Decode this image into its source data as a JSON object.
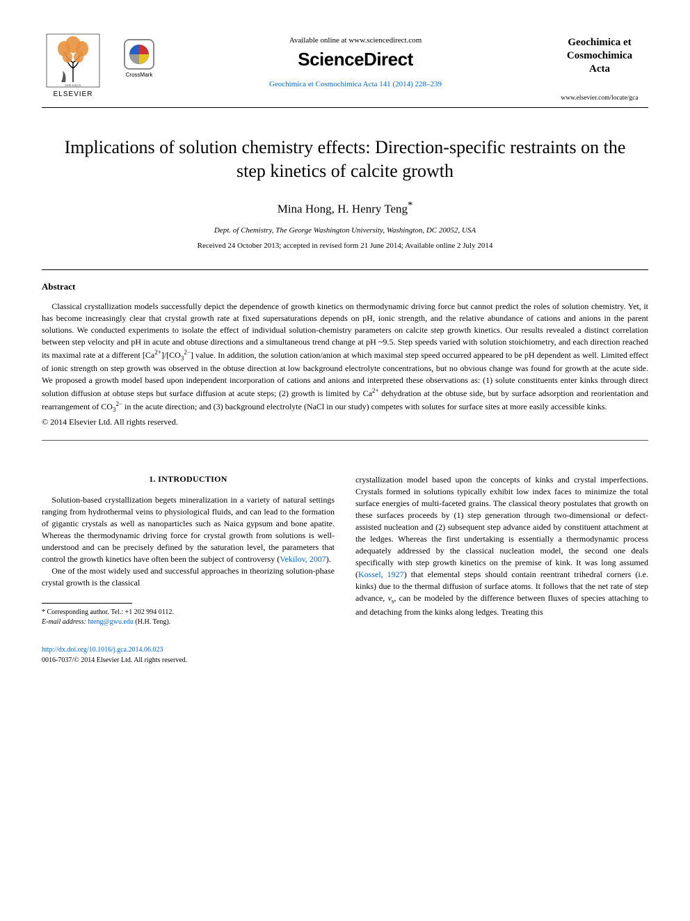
{
  "header": {
    "elsevier_label": "ELSEVIER",
    "crossmark_label": "CrossMark",
    "available_online": "Available online at www.sciencedirect.com",
    "sciencedirect": "ScienceDirect",
    "citation": "Geochimica et Cosmochimica Acta 141 (2014) 228–239",
    "journal_name_line1": "Geochimica et",
    "journal_name_line2": "Cosmochimica",
    "journal_name_line3": "Acta",
    "journal_url": "www.elsevier.com/locate/gca",
    "colors": {
      "link": "#0066cc",
      "text": "#000000",
      "background": "#ffffff",
      "crossmark_border": "#888888",
      "crossmark_red": "#cc3333",
      "crossmark_yellow": "#e8c020",
      "crossmark_blue": "#2060cc",
      "crossmark_gray": "#999999",
      "elsevier_orange": "#e8913d"
    }
  },
  "article": {
    "title": "Implications of solution chemistry effects: Direction-specific restraints on the step kinetics of calcite growth",
    "authors": "Mina Hong, H. Henry Teng",
    "corresponding_marker": "*",
    "affiliation": "Dept. of Chemistry, The George Washington University, Washington, DC 20052, USA",
    "dates": "Received 24 October 2013; accepted in revised form 21 June 2014; Available online 2 July 2014"
  },
  "abstract": {
    "heading": "Abstract",
    "body_pre": "Classical crystallization models successfully depict the dependence of growth kinetics on thermodynamic driving force but cannot predict the roles of solution chemistry. Yet, it has become increasingly clear that crystal growth rate at fixed supersaturations depends on pH, ionic strength, and the relative abundance of cations and anions in the parent solutions. We conducted experiments to isolate the effect of individual solution-chemistry parameters on calcite step growth kinetics. Our results revealed a distinct correlation between step velocity and pH in acute and obtuse directions and a simultaneous trend change at pH ~9.5. Step speeds varied with solution stoichiometry, and each direction reached its maximal rate at a different ",
    "ratio_html": "[Ca<sup>2+</sup>]/[CO<sub>3</sub><sup>2−</sup>]",
    "body_mid": " value. In addition, the solution cation/anion at which maximal step speed occurred appeared to be pH dependent as well. Limited effect of ionic strength on step growth was observed in the obtuse direction at low background electrolyte concentrations, but no obvious change was found for growth at the acute side. We proposed a growth model based upon independent incorporation of cations and anions and interpreted these observations as: (1) solute constituents enter kinks through direct solution diffusion at obtuse steps but surface diffusion at acute steps; (2) growth is limited by Ca",
    "ca_sup": "2+",
    "body_mid2": " dehydration at the obtuse side, but by surface adsorption and reorientation and rearrangement of ",
    "co3_html": "CO<sub>3</sub><sup>2−</sup>",
    "body_end": " in the acute direction; and (3) background electrolyte (NaCl in our study) competes with solutes for surface sites at more easily accessible kinks.",
    "copyright": "© 2014 Elsevier Ltd. All rights reserved."
  },
  "introduction": {
    "heading": "1. INTRODUCTION",
    "para1_pre": "Solution-based crystallization begets mineralization in a variety of natural settings ranging from hydrothermal veins to physiological fluids, and can lead to the formation of gigantic crystals as well as nanoparticles such as Naica gypsum and bone apatite. Whereas the thermodynamic driving force for crystal growth from solutions is well-understood and can be precisely defined by the saturation level, the parameters that control the growth kinetics have often been the subject of controversy (",
    "para1_cite": "Vekilov, 2007",
    "para1_post": ").",
    "para2": "One of the most widely used and successful approaches in theorizing solution-phase crystal growth is the classical",
    "para3_pre": "crystallization model based upon the concepts of kinks and crystal imperfections. Crystals formed in solutions typically exhibit low index faces to minimize the total surface energies of multi-faceted grains. The classical theory postulates that growth on these surfaces proceeds by (1) step generation through two-dimensional or defect-assisted nucleation and (2) subsequent step advance aided by constituent attachment at the ledges. Whereas the first undertaking is essentially a thermodynamic process adequately addressed by the classical nucleation model, the second one deals specifically with step growth kinetics on the premise of kink. It was long assumed (",
    "para3_cite": "Kossel, 1927",
    "para3_post": ") that elemental steps should contain reentrant trihedral corners (i.e. kinks) due to the thermal diffusion of surface atoms. It follows that the net rate of step advance, ",
    "vs_var": "v",
    "vs_sub": "s",
    "para3_end": ", can be modeled by the difference between fluxes of species attaching to and detaching from the kinks along ledges. Treating this"
  },
  "footer": {
    "corresponding_label": "* Corresponding author. Tel.: +1 202 994 0112.",
    "email_label": "E-mail address:",
    "email": "hteng@gwu.edu",
    "email_name": "(H.H. Teng).",
    "doi": "http://dx.doi.org/10.1016/j.gca.2014.06.023",
    "issn_copyright": "0016-7037/© 2014 Elsevier Ltd. All rights reserved."
  }
}
